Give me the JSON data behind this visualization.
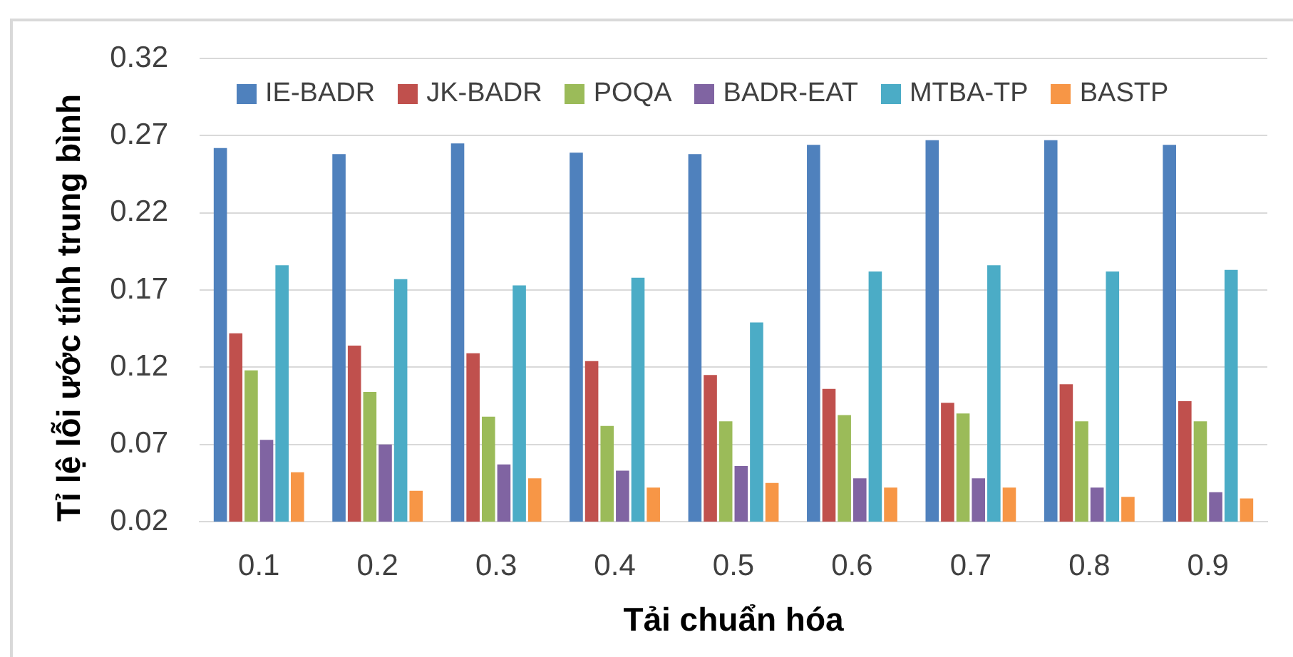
{
  "chart_data": {
    "type": "bar",
    "xlabel": "Tải chuẩn hóa",
    "ylabel": "Tỉ lệ lỗi ước tính trung bình",
    "categories": [
      "0.1",
      "0.2",
      "0.3",
      "0.4",
      "0.5",
      "0.6",
      "0.7",
      "0.8",
      "0.9"
    ],
    "series": [
      {
        "name": "IE-BADR",
        "color": "#4f81bd",
        "values": [
          0.262,
          0.258,
          0.265,
          0.259,
          0.258,
          0.264,
          0.267,
          0.267,
          0.264
        ]
      },
      {
        "name": "JK-BADR",
        "color": "#c0504d",
        "values": [
          0.142,
          0.134,
          0.129,
          0.124,
          0.115,
          0.106,
          0.097,
          0.109,
          0.098
        ]
      },
      {
        "name": "POQA",
        "color": "#9bbb59",
        "values": [
          0.118,
          0.104,
          0.088,
          0.082,
          0.085,
          0.089,
          0.09,
          0.085,
          0.085
        ]
      },
      {
        "name": "BADR-EAT",
        "color": "#8064a2",
        "values": [
          0.073,
          0.07,
          0.057,
          0.053,
          0.056,
          0.048,
          0.048,
          0.042,
          0.039
        ]
      },
      {
        "name": "MTBA-TP",
        "color": "#4bacc6",
        "values": [
          0.186,
          0.177,
          0.173,
          0.178,
          0.149,
          0.182,
          0.186,
          0.182,
          0.183
        ]
      },
      {
        "name": "BASTP",
        "color": "#f79646",
        "values": [
          0.052,
          0.04,
          0.048,
          0.042,
          0.045,
          0.042,
          0.042,
          0.036,
          0.035
        ]
      }
    ],
    "ylim": [
      0.02,
      0.32
    ],
    "yticks": [
      0.02,
      0.07,
      0.12,
      0.17,
      0.22,
      0.27,
      0.32
    ],
    "grid": "y",
    "legend": "top"
  }
}
